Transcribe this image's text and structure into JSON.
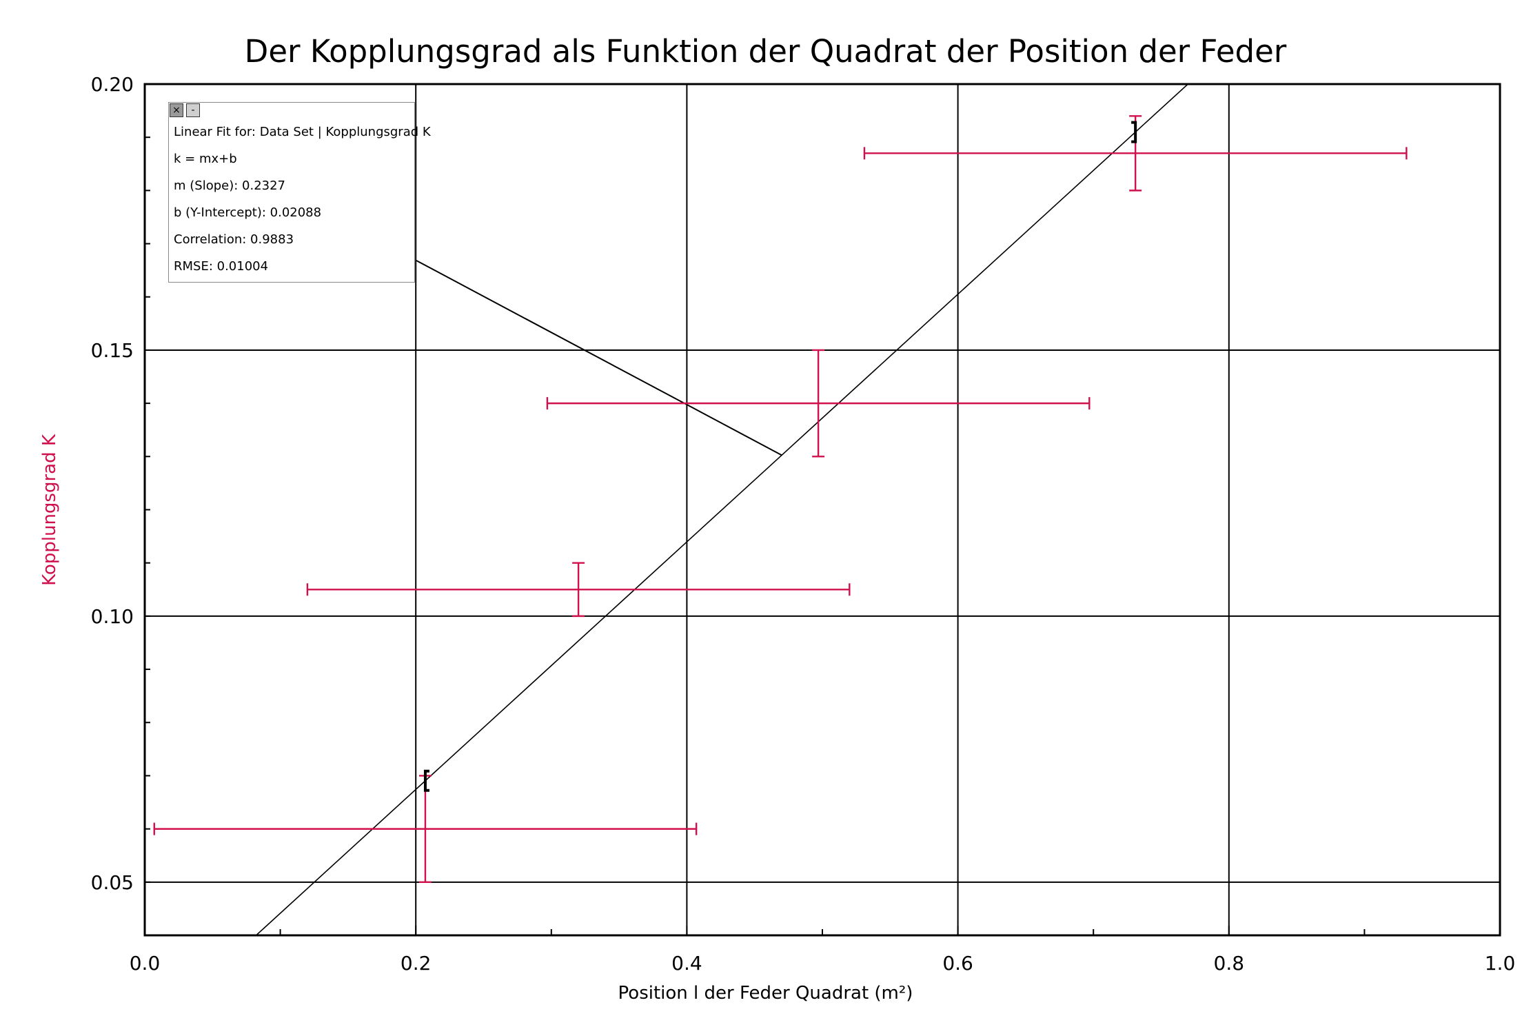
{
  "chart_data": {
    "type": "scatter",
    "title": "Der Kopplungsgrad als Funktion der Quadrat der Position der Feder",
    "xlabel": "Position l der Feder Quadrat (m²)",
    "ylabel": "Kopplungsgrad K",
    "xlim": [
      0.0,
      1.0
    ],
    "ylim": [
      0.04,
      0.2
    ],
    "x_ticks": [
      "0.0",
      "0.2",
      "0.4",
      "0.6",
      "0.8",
      "1.0"
    ],
    "y_ticks": [
      "0.05",
      "0.10",
      "0.15",
      "0.20"
    ],
    "grid": true,
    "series": [
      {
        "points": [
          {
            "x": 0.207,
            "y": 0.06,
            "x_err": 0.2,
            "y_err": 0.01
          },
          {
            "x": 0.32,
            "y": 0.105,
            "x_err": 0.2,
            "y_err": 0.005
          },
          {
            "x": 0.497,
            "y": 0.14,
            "x_err": 0.2,
            "y_err": 0.01
          },
          {
            "x": 0.731,
            "y": 0.187,
            "x_err": 0.2,
            "y_err": 0.007
          }
        ]
      }
    ],
    "fit": {
      "slope": 0.2327,
      "intercept": 0.02088
    }
  },
  "colors": {
    "data": "#d0104c",
    "axis": "#000000",
    "fit": "#000000"
  },
  "fit_box": {
    "close_icon": "×",
    "minimize_icon": "-",
    "lines": [
      "Linear Fit for: Data Set | Kopplungsgrad K",
      "k = mx+b",
      "m (Slope): 0.2327",
      "b (Y-Intercept): 0.02088",
      "Correlation: 0.9883",
      "RMSE: 0.01004"
    ]
  }
}
